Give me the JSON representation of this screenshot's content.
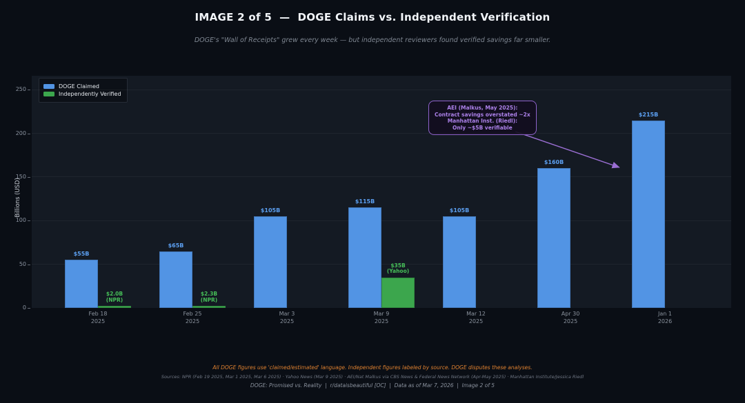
{
  "header": {
    "title": "IMAGE 2 of 5  —  DOGE Claims vs. Independent Verification",
    "subtitle": "DOGE's \"Wall of Receipts\" grew every week — but independent reviewers found verified savings far smaller."
  },
  "chart_data": {
    "type": "bar",
    "title": "IMAGE 2 of 5 — DOGE Claims vs. Independent Verification",
    "xlabel": "",
    "ylabel": "Billions (USD)",
    "ylim": [
      0,
      266
    ],
    "yticks": [
      0,
      50,
      100,
      150,
      200,
      250
    ],
    "grid": true,
    "legend_position": "upper left",
    "categories": [
      [
        "Feb 18",
        "2025"
      ],
      [
        "Feb 25",
        "2025"
      ],
      [
        "Mar 3",
        "2025"
      ],
      [
        "Mar 9",
        "2025"
      ],
      [
        "Mar 12",
        "2025"
      ],
      [
        "Apr 30",
        "2025"
      ],
      [
        "Jan 1",
        "2026"
      ]
    ],
    "series": [
      {
        "name": "DOGE Claimed",
        "color": "#5294e4",
        "label_color": "#5ca0f2",
        "values": [
          55,
          65,
          105,
          115,
          105,
          160,
          215
        ],
        "bar_labels": [
          [
            "$55B"
          ],
          [
            "$65B"
          ],
          [
            "$105B"
          ],
          [
            "$115B"
          ],
          [
            "$105B"
          ],
          [
            "$160B"
          ],
          [
            "$215B"
          ]
        ]
      },
      {
        "name": "Independently Verified",
        "color": "#3ca64d",
        "label_color": "#46bf58",
        "values": [
          2.0,
          2.3,
          0,
          35,
          0,
          0,
          0
        ],
        "bar_labels": [
          [
            "$2.0B",
            "(NPR)"
          ],
          [
            "$2.3B",
            "(NPR)"
          ],
          null,
          [
            "$35B",
            "(Yahoo)"
          ],
          null,
          null,
          null
        ]
      }
    ],
    "annotation": {
      "lines": [
        "AEI (Malkus, May 2025):",
        "Contract savings overstated ~2x",
        "Manhattan Inst. (Riedl):",
        "Only ~$5B verifiable"
      ],
      "text_color": "#ab80e8",
      "border_color": "#8f63cc",
      "arrow_color": "#9b6fd4"
    }
  },
  "footer": {
    "disclaimer": "All DOGE figures use 'claimed/estimated' language. Independent figures labeled by source. DOGE disputes these analyses.",
    "sources": "Sources: NPR (Feb 19 2025, Mar 1 2025, Mar 6 2025) · Yahoo News (Mar 9 2025) · AEI/Nat Malkus via CBS News & Federal News Network (Apr-May 2025) · Manhattan Institute/Jessica Riedl",
    "caption": "DOGE: Promised vs. Reality  |  r/dataisbeautiful [OC]  |  Data as of Mar 7, 2026  |  Image 2 of 5"
  }
}
